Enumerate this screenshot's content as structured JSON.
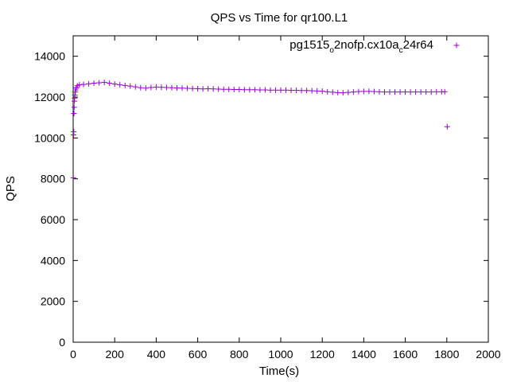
{
  "chart_data": {
    "type": "scatter",
    "title": "QPS vs Time for qr100.L1",
    "xlabel": "Time(s)",
    "ylabel": "QPS",
    "xlim": [
      0,
      2000
    ],
    "ylim": [
      0,
      15000
    ],
    "xticks": [
      0,
      200,
      400,
      600,
      800,
      1000,
      1200,
      1400,
      1600,
      1800,
      2000
    ],
    "yticks": [
      0,
      2000,
      4000,
      6000,
      8000,
      10000,
      12000,
      14000
    ],
    "xtick_labels": [
      "0",
      "200",
      "400",
      "600",
      "800",
      "1000",
      "1200",
      "1400",
      "1600",
      "1800",
      "2000"
    ],
    "ytick_labels": [
      "0",
      "2000",
      "4000",
      "6000",
      "8000",
      "10000",
      "12000",
      "14000"
    ],
    "grid": false,
    "legend_position": "top-right",
    "marker": "plus",
    "color": "#9400d3",
    "series": [
      {
        "name": "pg1515_o2nofp.cx10a_c24r64",
        "name_parts": {
          "p1": "pg1515",
          "s1": "o",
          "p2": "2nofp.cx10a",
          "s2": "c",
          "p3": "24r64"
        },
        "points": [
          [
            1,
            8050
          ],
          [
            2,
            10150
          ],
          [
            3,
            10300
          ],
          [
            4,
            11200
          ],
          [
            5,
            11500
          ],
          [
            6,
            11800
          ],
          [
            7,
            11950
          ],
          [
            8,
            12100
          ],
          [
            10,
            12250
          ],
          [
            12,
            12350
          ],
          [
            15,
            12450
          ],
          [
            20,
            12550
          ],
          [
            30,
            12600
          ],
          [
            50,
            12620
          ],
          [
            75,
            12650
          ],
          [
            100,
            12680
          ],
          [
            125,
            12700
          ],
          [
            150,
            12720
          ],
          [
            175,
            12680
          ],
          [
            200,
            12640
          ],
          [
            225,
            12600
          ],
          [
            250,
            12570
          ],
          [
            275,
            12540
          ],
          [
            300,
            12500
          ],
          [
            325,
            12460
          ],
          [
            350,
            12440
          ],
          [
            375,
            12470
          ],
          [
            400,
            12490
          ],
          [
            425,
            12480
          ],
          [
            450,
            12470
          ],
          [
            475,
            12460
          ],
          [
            500,
            12450
          ],
          [
            525,
            12440
          ],
          [
            550,
            12430
          ],
          [
            575,
            12420
          ],
          [
            600,
            12410
          ],
          [
            625,
            12400
          ],
          [
            650,
            12410
          ],
          [
            675,
            12400
          ],
          [
            700,
            12390
          ],
          [
            725,
            12380
          ],
          [
            750,
            12380
          ],
          [
            775,
            12370
          ],
          [
            800,
            12370
          ],
          [
            825,
            12360
          ],
          [
            850,
            12360
          ],
          [
            875,
            12360
          ],
          [
            900,
            12350
          ],
          [
            925,
            12350
          ],
          [
            950,
            12340
          ],
          [
            975,
            12340
          ],
          [
            1000,
            12340
          ],
          [
            1025,
            12340
          ],
          [
            1050,
            12330
          ],
          [
            1075,
            12330
          ],
          [
            1100,
            12320
          ],
          [
            1125,
            12320
          ],
          [
            1150,
            12310
          ],
          [
            1175,
            12300
          ],
          [
            1200,
            12290
          ],
          [
            1225,
            12260
          ],
          [
            1250,
            12240
          ],
          [
            1275,
            12220
          ],
          [
            1300,
            12210
          ],
          [
            1325,
            12230
          ],
          [
            1350,
            12250
          ],
          [
            1375,
            12270
          ],
          [
            1400,
            12280
          ],
          [
            1425,
            12280
          ],
          [
            1450,
            12270
          ],
          [
            1475,
            12260
          ],
          [
            1500,
            12250
          ],
          [
            1525,
            12250
          ],
          [
            1550,
            12250
          ],
          [
            1575,
            12250
          ],
          [
            1600,
            12250
          ],
          [
            1625,
            12250
          ],
          [
            1650,
            12250
          ],
          [
            1675,
            12250
          ],
          [
            1700,
            12250
          ],
          [
            1725,
            12250
          ],
          [
            1750,
            12260
          ],
          [
            1775,
            12260
          ],
          [
            1790,
            12260
          ],
          [
            1802,
            10550
          ]
        ]
      }
    ]
  }
}
